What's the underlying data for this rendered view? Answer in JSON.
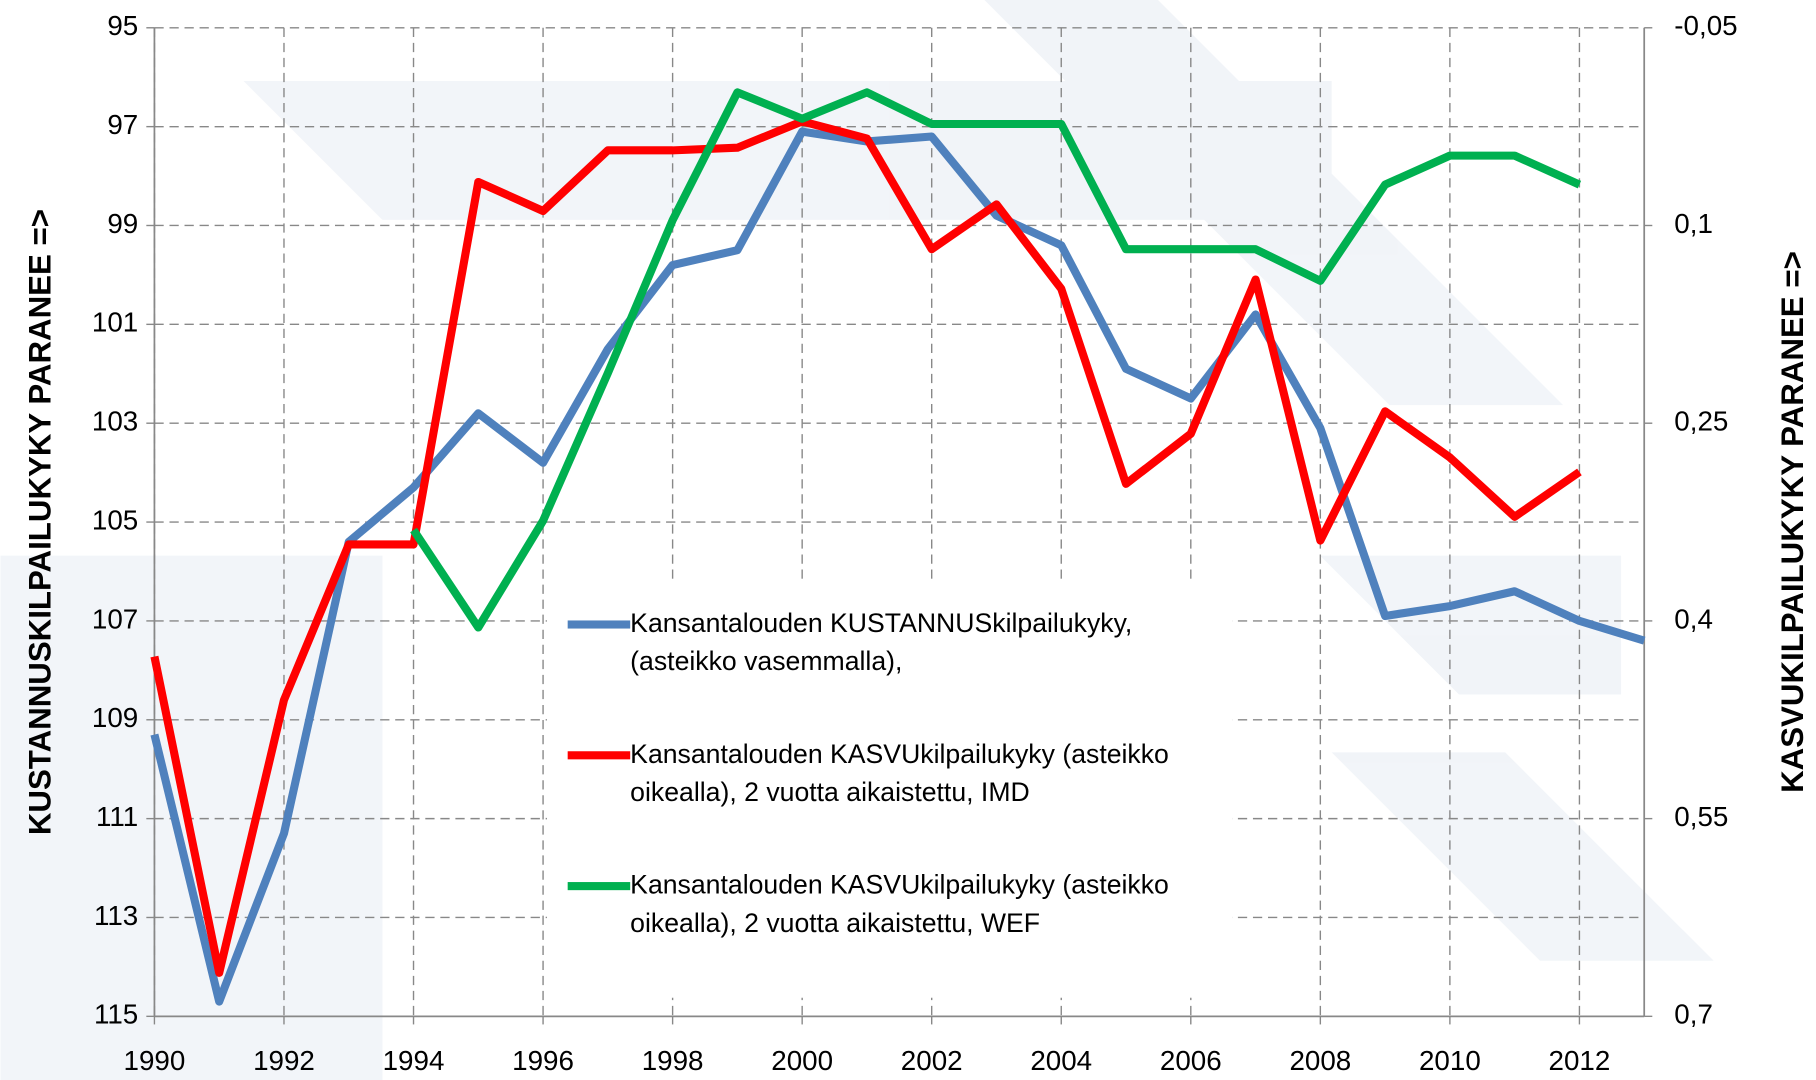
{
  "chart_data": {
    "type": "line",
    "x": [
      1990,
      1991,
      1992,
      1993,
      1994,
      1995,
      1996,
      1997,
      1998,
      1999,
      2000,
      2001,
      2002,
      2003,
      2004,
      2005,
      2006,
      2007,
      2008,
      2009,
      2010,
      2011,
      2012,
      2013
    ],
    "xlim": [
      1990,
      2013
    ],
    "xticks": [
      1990,
      1992,
      1994,
      1996,
      1998,
      2000,
      2002,
      2004,
      2006,
      2008,
      2010,
      2012
    ],
    "ylim": [
      95,
      115
    ],
    "yticks": [
      95,
      97,
      99,
      101,
      103,
      105,
      107,
      109,
      111,
      113,
      115
    ],
    "y2lim": [
      -0.05,
      0.7
    ],
    "y2ticks": [
      {
        "value": -0.05,
        "label": "-0,05"
      },
      {
        "value": 0.1,
        "label": "0,1"
      },
      {
        "value": 0.25,
        "label": "0,25"
      },
      {
        "value": 0.4,
        "label": "0,4"
      },
      {
        "value": 0.55,
        "label": "0,55"
      },
      {
        "value": 0.7,
        "label": "0,7"
      }
    ],
    "y_inverted": true,
    "y2_inverted": true,
    "grid": true,
    "ylabel": "KUSTANNUSKILPAILUKYKY PARANEE =>",
    "y2label": "KASVUKILPAILUKYKY PARANEE =>",
    "series": [
      {
        "name": "Kansantalouden KUSTANNUSkilpailukyky, (asteikko vasemmalla),",
        "color": "#4f81bd",
        "values": [
          109.3,
          114.7,
          111.3,
          105.4,
          104.3,
          102.8,
          103.8,
          101.5,
          99.8,
          99.5,
          97.1,
          97.3,
          97.2,
          98.8,
          99.4,
          101.9,
          102.5,
          100.8,
          103.1,
          106.9,
          106.7,
          106.4,
          107.0,
          107.4
        ]
      },
      {
        "name": "Kansantalouden KASVUkilpailukyky (asteikko oikealla), 2 vuotta aikaistettu, IMD",
        "color": "#ff0000",
        "axis": "y2",
        "values": [
          0.427,
          0.667,
          0.46,
          0.342,
          0.342,
          0.067,
          0.089,
          0.043,
          0.043,
          0.041,
          0.021,
          0.034,
          0.118,
          0.084,
          0.148,
          0.296,
          0.258,
          0.141,
          0.339,
          0.241,
          0.276,
          0.321,
          0.287,
          null
        ]
      },
      {
        "name": "Kansantalouden KASVUkilpailukyky (asteikko oikealla), 2 vuotta aikaistettu, WEF",
        "color": "#00b050",
        "axis": "y2",
        "values": [
          null,
          null,
          null,
          null,
          0.331,
          0.405,
          0.324,
          0.212,
          0.096,
          -0.001,
          0.019,
          -0.001,
          0.023,
          0.023,
          0.023,
          0.118,
          0.118,
          0.118,
          0.142,
          0.069,
          0.047,
          0.047,
          0.069,
          null
        ]
      }
    ]
  }
}
